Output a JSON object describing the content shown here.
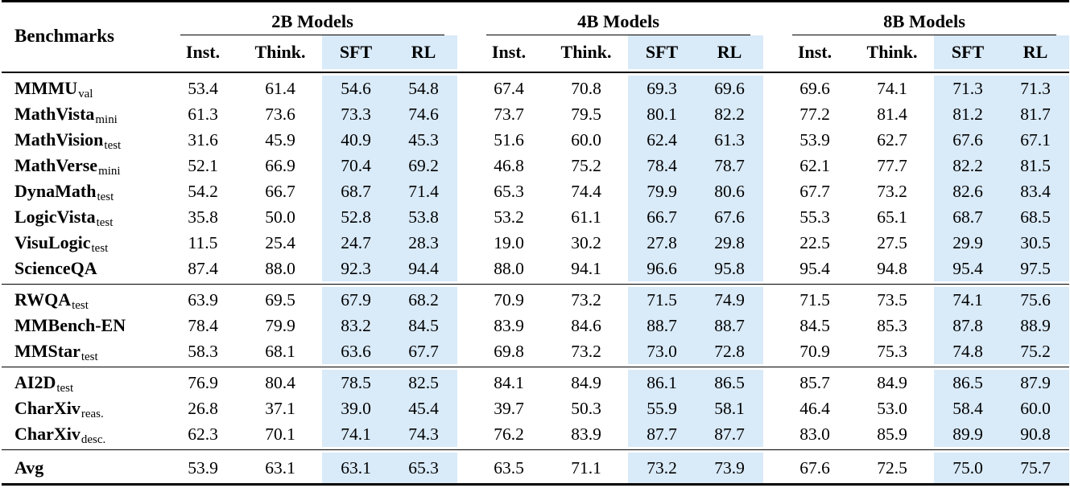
{
  "table": {
    "highlight_color": "#d9eaf8",
    "header": {
      "benchmarks_label": "Benchmarks",
      "highlight_columns": [
        "SFT",
        "RL"
      ],
      "groups": [
        {
          "label": "2B Models",
          "columns": [
            "Inst.",
            "Think.",
            "SFT",
            "RL"
          ]
        },
        {
          "label": "4B Models",
          "columns": [
            "Inst.",
            "Think.",
            "SFT",
            "RL"
          ]
        },
        {
          "label": "8B Models",
          "columns": [
            "Inst.",
            "Think.",
            "SFT",
            "RL"
          ]
        }
      ]
    },
    "sections": [
      {
        "rows": [
          {
            "name": "MMMU",
            "sub": "val",
            "values": [
              "53.4",
              "61.4",
              "54.6",
              "54.8",
              "67.4",
              "70.8",
              "69.3",
              "69.6",
              "69.6",
              "74.1",
              "71.3",
              "71.3"
            ]
          },
          {
            "name": "MathVista",
            "sub": "mini",
            "values": [
              "61.3",
              "73.6",
              "73.3",
              "74.6",
              "73.7",
              "79.5",
              "80.1",
              "82.2",
              "77.2",
              "81.4",
              "81.2",
              "81.7"
            ]
          },
          {
            "name": "MathVision",
            "sub": "test",
            "values": [
              "31.6",
              "45.9",
              "40.9",
              "45.3",
              "51.6",
              "60.0",
              "62.4",
              "61.3",
              "53.9",
              "62.7",
              "67.6",
              "67.1"
            ]
          },
          {
            "name": "MathVerse",
            "sub": "mini",
            "values": [
              "52.1",
              "66.9",
              "70.4",
              "69.2",
              "46.8",
              "75.2",
              "78.4",
              "78.7",
              "62.1",
              "77.7",
              "82.2",
              "81.5"
            ]
          },
          {
            "name": "DynaMath",
            "sub": "test",
            "values": [
              "54.2",
              "66.7",
              "68.7",
              "71.4",
              "65.3",
              "74.4",
              "79.9",
              "80.6",
              "67.7",
              "73.2",
              "82.6",
              "83.4"
            ]
          },
          {
            "name": "LogicVista",
            "sub": "test",
            "values": [
              "35.8",
              "50.0",
              "52.8",
              "53.8",
              "53.2",
              "61.1",
              "66.7",
              "67.6",
              "55.3",
              "65.1",
              "68.7",
              "68.5"
            ]
          },
          {
            "name": "VisuLogic",
            "sub": "test",
            "values": [
              "11.5",
              "25.4",
              "24.7",
              "28.3",
              "19.0",
              "30.2",
              "27.8",
              "29.8",
              "22.5",
              "27.5",
              "29.9",
              "30.5"
            ]
          },
          {
            "name": "ScienceQA",
            "sub": "",
            "values": [
              "87.4",
              "88.0",
              "92.3",
              "94.4",
              "88.0",
              "94.1",
              "96.6",
              "95.8",
              "95.4",
              "94.8",
              "95.4",
              "97.5"
            ]
          }
        ]
      },
      {
        "rows": [
          {
            "name": "RWQA",
            "sub": "test",
            "values": [
              "63.9",
              "69.5",
              "67.9",
              "68.2",
              "70.9",
              "73.2",
              "71.5",
              "74.9",
              "71.5",
              "73.5",
              "74.1",
              "75.6"
            ]
          },
          {
            "name": "MMBench-EN",
            "sub": "",
            "values": [
              "78.4",
              "79.9",
              "83.2",
              "84.5",
              "83.9",
              "84.6",
              "88.7",
              "88.7",
              "84.5",
              "85.3",
              "87.8",
              "88.9"
            ]
          },
          {
            "name": "MMStar",
            "sub": "test",
            "values": [
              "58.3",
              "68.1",
              "63.6",
              "67.7",
              "69.8",
              "73.2",
              "73.0",
              "72.8",
              "70.9",
              "75.3",
              "74.8",
              "75.2"
            ]
          }
        ]
      },
      {
        "rows": [
          {
            "name": "AI2D",
            "sub": "test",
            "values": [
              "76.9",
              "80.4",
              "78.5",
              "82.5",
              "84.1",
              "84.9",
              "86.1",
              "86.5",
              "85.7",
              "84.9",
              "86.5",
              "87.9"
            ]
          },
          {
            "name": "CharXiv",
            "sub": "reas.",
            "values": [
              "26.8",
              "37.1",
              "39.0",
              "45.4",
              "39.7",
              "50.3",
              "55.9",
              "58.1",
              "46.4",
              "53.0",
              "58.4",
              "60.0"
            ]
          },
          {
            "name": "CharXiv",
            "sub": "desc.",
            "values": [
              "62.3",
              "70.1",
              "74.1",
              "74.3",
              "76.2",
              "83.9",
              "87.7",
              "87.7",
              "83.0",
              "85.9",
              "89.9",
              "90.8"
            ]
          }
        ]
      },
      {
        "rows": [
          {
            "name": "Avg",
            "sub": "",
            "values": [
              "53.9",
              "63.1",
              "63.1",
              "65.3",
              "63.5",
              "71.1",
              "73.2",
              "73.9",
              "67.6",
              "72.5",
              "75.0",
              "75.7"
            ]
          }
        ]
      }
    ]
  }
}
